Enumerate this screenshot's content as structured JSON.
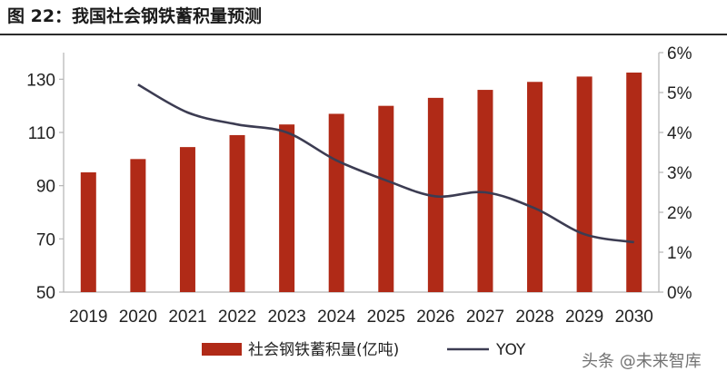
{
  "figure": {
    "title": "图 22：我国社会钢铁蓄积量预测",
    "watermark": "头条 @未来智库"
  },
  "chart_data": {
    "type": "bar",
    "categories": [
      "2019",
      "2020",
      "2021",
      "2022",
      "2023",
      "2024",
      "2025",
      "2026",
      "2027",
      "2028",
      "2029",
      "2030"
    ],
    "series": [
      {
        "name": "社会钢铁蓄积量(亿吨)",
        "type": "bar",
        "axis": "left",
        "values": [
          95,
          100,
          104.5,
          109,
          113,
          117,
          120,
          123,
          126,
          129,
          131,
          132.5
        ]
      },
      {
        "name": "YOY",
        "type": "line",
        "axis": "right",
        "values": [
          null,
          5.2,
          4.5,
          4.2,
          4.0,
          3.3,
          2.8,
          2.4,
          2.5,
          2.1,
          1.45,
          1.25
        ]
      }
    ],
    "ylim_left": [
      50,
      140
    ],
    "yticks_left": [
      "50",
      "70",
      "90",
      "110",
      "130"
    ],
    "ylim_right": [
      0,
      6
    ],
    "yticks_right": [
      "0%",
      "1%",
      "2%",
      "3%",
      "4%",
      "5%",
      "6%"
    ],
    "xlabel": "",
    "ylabel": "",
    "grid": false,
    "legend_position": "bottom",
    "colors": {
      "bar": "#b02a17",
      "line": "#3c3c52",
      "axis": "#b5b5b5"
    }
  }
}
